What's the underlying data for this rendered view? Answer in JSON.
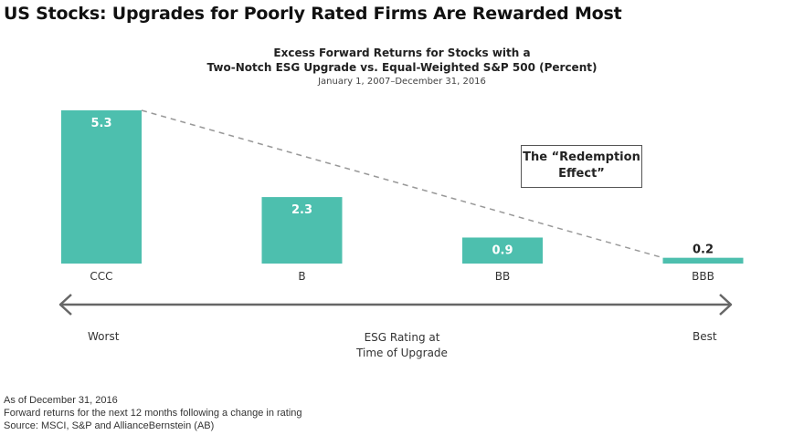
{
  "title": "US Stocks: Upgrades for Poorly Rated Firms Are Rewarded Most",
  "subtitle_line1": "Excess Forward Returns for Stocks with a",
  "subtitle_line2": "Two-Notch ESG Upgrade vs. Equal-Weighted S&P 500 (Percent)",
  "date_range": "January 1, 2007–December 31, 2016",
  "callout_line1": "The “Redemption",
  "callout_line2": "Effect”",
  "axis": {
    "left_end": "Worst",
    "right_end": "Best",
    "label_line1": "ESG Rating at",
    "label_line2": "Time of Upgrade"
  },
  "notes": [
    "As of December 31, 2016",
    "Forward returns for the next 12 months following a change in rating",
    "Source: MSCI, S&P and AllianceBernstein (AB)"
  ],
  "colors": {
    "bar": "#4dbfae",
    "arrow": "#666666",
    "trend_line": "#999999"
  },
  "chart_data": {
    "type": "bar",
    "categories": [
      "CCC",
      "B",
      "BB",
      "BBB"
    ],
    "values": [
      5.3,
      2.3,
      0.9,
      0.2
    ],
    "data_labels": [
      "5.3",
      "2.3",
      "0.9",
      "0.2"
    ],
    "title": "Excess Forward Returns for Stocks with a Two-Notch ESG Upgrade vs. Equal-Weighted S&P 500 (Percent)",
    "xlabel": "ESG Rating at Time of Upgrade",
    "ylabel": "",
    "ylim": [
      0,
      5.3
    ],
    "grid": false,
    "legend": "none",
    "annotation": "The “Redemption Effect”"
  }
}
